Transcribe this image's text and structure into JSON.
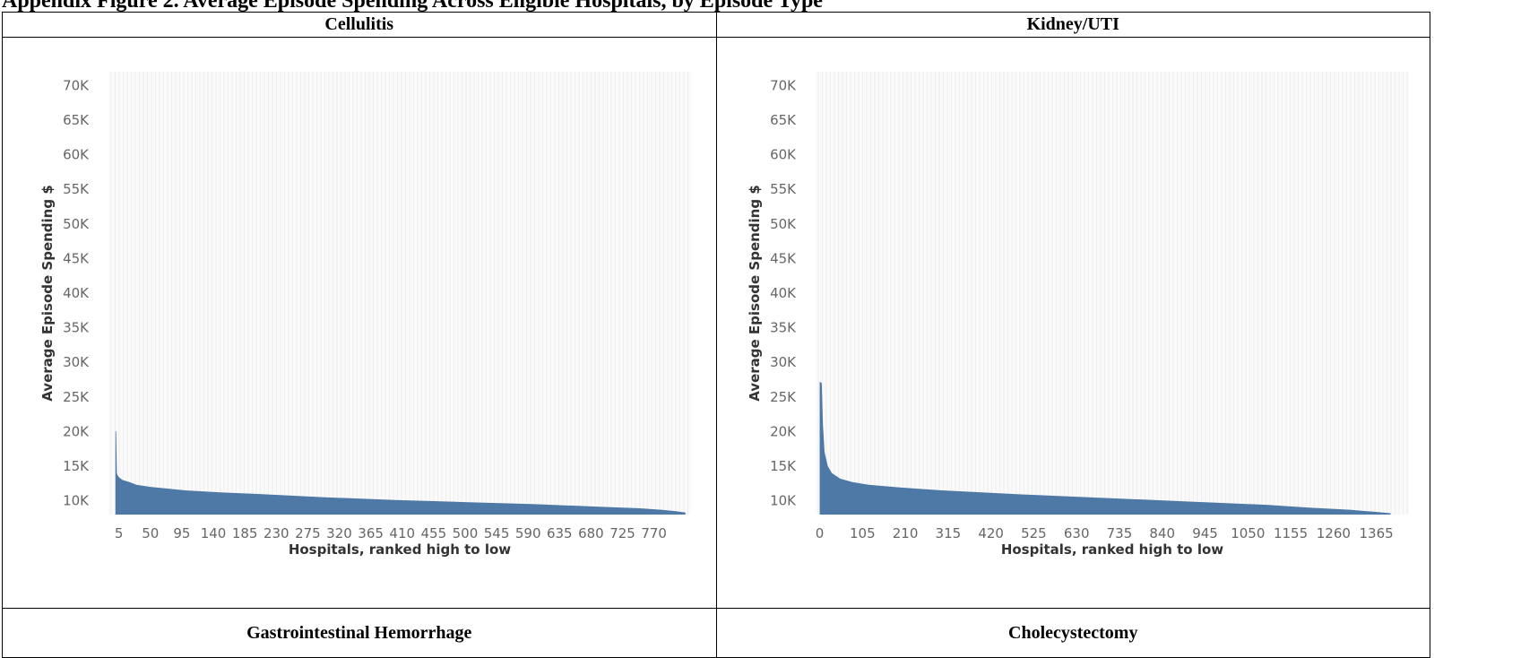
{
  "page": {
    "title": "Appendix Figure 2. Average Episode Spending Across Eligible Hospitals, by Episode Type"
  },
  "panels": [
    {
      "title": "Cellulitis"
    },
    {
      "title": "Kidney/UTI"
    },
    {
      "title": "Gastrointestinal Hemorrhage"
    },
    {
      "title": "Cholecystectomy"
    }
  ],
  "colors": {
    "bar": "#4e79a7",
    "plot_bg": "#fafafa",
    "grid": "#eeeeee"
  },
  "chart_data": [
    {
      "type": "area",
      "panel": "Cellulitis",
      "xlabel": "Hospitals, ranked high to low",
      "ylabel": "Average Episode Spending $",
      "ylim": [
        8000,
        72000
      ],
      "xlim": [
        -10,
        823
      ],
      "y_ticks": [
        10000,
        15000,
        20000,
        25000,
        30000,
        35000,
        40000,
        45000,
        50000,
        55000,
        60000,
        65000,
        70000
      ],
      "y_tick_labels": [
        "10K",
        "15K",
        "20K",
        "25K",
        "30K",
        "35K",
        "40K",
        "45K",
        "50K",
        "55K",
        "60K",
        "65K",
        "70K"
      ],
      "x_ticks": [
        5,
        50,
        95,
        140,
        185,
        230,
        275,
        320,
        365,
        410,
        455,
        500,
        545,
        590,
        635,
        680,
        725,
        770
      ],
      "x_tick_labels": [
        "5",
        "50",
        "95",
        "140",
        "185",
        "230",
        "275",
        "320",
        "365",
        "410",
        "455",
        "500",
        "545",
        "590",
        "635",
        "680",
        "725",
        "770"
      ],
      "x": [
        0,
        1,
        2,
        3,
        5,
        10,
        20,
        30,
        50,
        100,
        150,
        200,
        300,
        400,
        500,
        600,
        700,
        750,
        780,
        800,
        815
      ],
      "y": [
        20100,
        20000,
        14000,
        13700,
        13400,
        13000,
        12700,
        12300,
        12000,
        11500,
        11200,
        11000,
        10500,
        10100,
        9800,
        9500,
        9100,
        8900,
        8700,
        8500,
        8300
      ]
    },
    {
      "type": "area",
      "panel": "Kidney/UTI",
      "xlabel": "Hospitals, ranked high to low",
      "ylabel": "Average Episode Spending $",
      "ylim": [
        8000,
        72000
      ],
      "xlim": [
        -10,
        1445
      ],
      "y_ticks": [
        10000,
        15000,
        20000,
        25000,
        30000,
        35000,
        40000,
        45000,
        50000,
        55000,
        60000,
        65000,
        70000
      ],
      "y_tick_labels": [
        "10K",
        "15K",
        "20K",
        "25K",
        "30K",
        "35K",
        "40K",
        "45K",
        "50K",
        "55K",
        "60K",
        "65K",
        "70K"
      ],
      "x_ticks": [
        0,
        105,
        210,
        315,
        420,
        525,
        630,
        735,
        840,
        945,
        1050,
        1155,
        1260,
        1365
      ],
      "x_tick_labels": [
        "0",
        "105",
        "210",
        "315",
        "420",
        "525",
        "630",
        "735",
        "840",
        "945",
        "1050",
        "1155",
        "1260",
        "1365"
      ],
      "x": [
        0,
        5,
        8,
        12,
        20,
        30,
        50,
        80,
        120,
        200,
        300,
        500,
        700,
        900,
        1100,
        1200,
        1300,
        1360,
        1400
      ],
      "y": [
        27200,
        27000,
        21000,
        17000,
        15000,
        14000,
        13200,
        12700,
        12300,
        11900,
        11500,
        10900,
        10400,
        9900,
        9400,
        9000,
        8700,
        8400,
        8200
      ]
    }
  ]
}
